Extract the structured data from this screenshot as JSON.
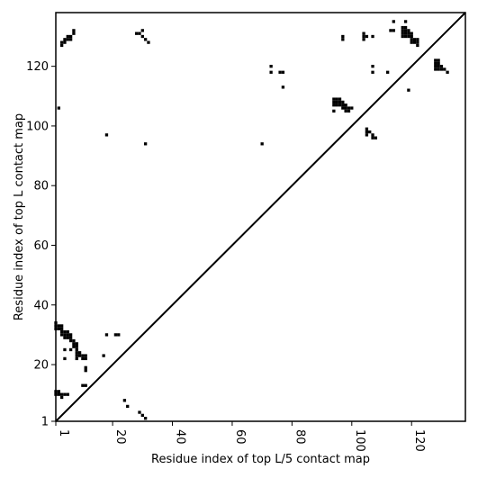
{
  "chart_data": {
    "type": "heatmap",
    "title": "",
    "xlabel": "Residue index of top L/5 contact map",
    "ylabel": "Residue index of top L contact map",
    "xlim": [
      1,
      138
    ],
    "ylim": [
      1,
      138
    ],
    "xticks": [
      1,
      20,
      40,
      60,
      80,
      100,
      120
    ],
    "yticks": [
      1,
      20,
      40,
      60,
      80,
      100,
      120
    ],
    "xtick_labels": [
      "1",
      "20",
      "40",
      "60",
      "80",
      "100",
      "120"
    ],
    "ytick_labels": [
      "1",
      "20",
      "40",
      "60",
      "80",
      "100",
      "120"
    ],
    "x_tick_label_rotation": 90,
    "diagonal": true,
    "grid": false,
    "cell_color": "#000000",
    "contacts_lower_right": [
      [
        1,
        10
      ],
      [
        1,
        11
      ],
      [
        2,
        10
      ],
      [
        2,
        11
      ],
      [
        3,
        10
      ],
      [
        4,
        10
      ],
      [
        5,
        10
      ],
      [
        3,
        9
      ],
      [
        10,
        13
      ],
      [
        11,
        13
      ],
      [
        24,
        8
      ],
      [
        25,
        6
      ],
      [
        29,
        4
      ],
      [
        30,
        3
      ],
      [
        31,
        2
      ]
    ],
    "contacts_upper_left": [
      [
        1,
        32
      ],
      [
        1,
        33
      ],
      [
        1,
        34
      ],
      [
        2,
        32
      ],
      [
        2,
        33
      ],
      [
        3,
        30
      ],
      [
        3,
        31
      ],
      [
        3,
        32
      ],
      [
        3,
        33
      ],
      [
        4,
        30
      ],
      [
        4,
        31
      ],
      [
        4,
        29
      ],
      [
        5,
        29
      ],
      [
        5,
        30
      ],
      [
        5,
        31
      ],
      [
        6,
        28
      ],
      [
        6,
        29
      ],
      [
        6,
        30
      ],
      [
        7,
        26
      ],
      [
        7,
        27
      ],
      [
        7,
        28
      ],
      [
        8,
        22
      ],
      [
        8,
        23
      ],
      [
        8,
        24
      ],
      [
        8,
        25
      ],
      [
        8,
        26
      ],
      [
        8,
        27
      ],
      [
        9,
        23
      ],
      [
        9,
        24
      ],
      [
        10,
        22
      ],
      [
        10,
        23
      ],
      [
        11,
        22
      ],
      [
        11,
        23
      ],
      [
        4,
        22
      ],
      [
        4,
        25
      ],
      [
        6,
        25
      ],
      [
        11,
        18
      ],
      [
        11,
        19
      ],
      [
        17,
        23
      ],
      [
        18,
        30
      ],
      [
        21,
        30
      ],
      [
        22,
        30
      ],
      [
        2,
        106
      ],
      [
        18,
        97
      ],
      [
        31,
        94
      ],
      [
        70,
        94
      ],
      [
        3,
        127
      ],
      [
        3,
        128
      ],
      [
        4,
        128
      ],
      [
        4,
        129
      ],
      [
        5,
        129
      ],
      [
        5,
        130
      ],
      [
        6,
        129
      ],
      [
        6,
        130
      ],
      [
        7,
        131
      ],
      [
        7,
        132
      ],
      [
        28,
        131
      ],
      [
        29,
        131
      ],
      [
        30,
        130
      ],
      [
        30,
        132
      ],
      [
        31,
        129
      ],
      [
        32,
        128
      ],
      [
        73,
        118
      ],
      [
        73,
        120
      ],
      [
        76,
        118
      ],
      [
        77,
        118
      ],
      [
        77,
        113
      ],
      [
        94,
        105
      ],
      [
        94,
        107
      ],
      [
        94,
        108
      ],
      [
        94,
        109
      ],
      [
        95,
        107
      ],
      [
        95,
        108
      ],
      [
        95,
        109
      ],
      [
        96,
        107
      ],
      [
        96,
        108
      ],
      [
        96,
        109
      ],
      [
        97,
        106
      ],
      [
        97,
        107
      ],
      [
        97,
        108
      ],
      [
        98,
        105
      ],
      [
        98,
        106
      ],
      [
        98,
        107
      ],
      [
        99,
        105
      ],
      [
        99,
        106
      ],
      [
        100,
        106
      ],
      [
        97,
        129
      ],
      [
        97,
        130
      ],
      [
        104,
        129
      ],
      [
        104,
        130
      ],
      [
        104,
        131
      ],
      [
        105,
        130
      ],
      [
        107,
        130
      ],
      [
        107,
        118
      ],
      [
        107,
        120
      ],
      [
        105,
        97
      ],
      [
        105,
        98
      ],
      [
        105,
        99
      ],
      [
        106,
        98
      ],
      [
        107,
        96
      ],
      [
        107,
        97
      ],
      [
        108,
        96
      ],
      [
        113,
        132
      ],
      [
        114,
        132
      ],
      [
        114,
        135
      ],
      [
        112,
        118
      ],
      [
        117,
        130
      ],
      [
        117,
        131
      ],
      [
        117,
        132
      ],
      [
        117,
        133
      ],
      [
        118,
        130
      ],
      [
        118,
        131
      ],
      [
        118,
        132
      ],
      [
        118,
        133
      ],
      [
        118,
        135
      ],
      [
        119,
        112
      ],
      [
        119,
        130
      ],
      [
        119,
        131
      ],
      [
        119,
        132
      ],
      [
        120,
        128
      ],
      [
        120,
        129
      ],
      [
        120,
        130
      ],
      [
        120,
        131
      ],
      [
        121,
        128
      ],
      [
        121,
        129
      ],
      [
        122,
        127
      ],
      [
        122,
        128
      ],
      [
        122,
        129
      ],
      [
        128,
        119
      ],
      [
        128,
        120
      ],
      [
        128,
        121
      ],
      [
        128,
        122
      ],
      [
        129,
        119
      ],
      [
        129,
        120
      ],
      [
        129,
        121
      ],
      [
        129,
        122
      ],
      [
        130,
        119
      ],
      [
        130,
        120
      ],
      [
        131,
        119
      ],
      [
        132,
        118
      ]
    ]
  }
}
